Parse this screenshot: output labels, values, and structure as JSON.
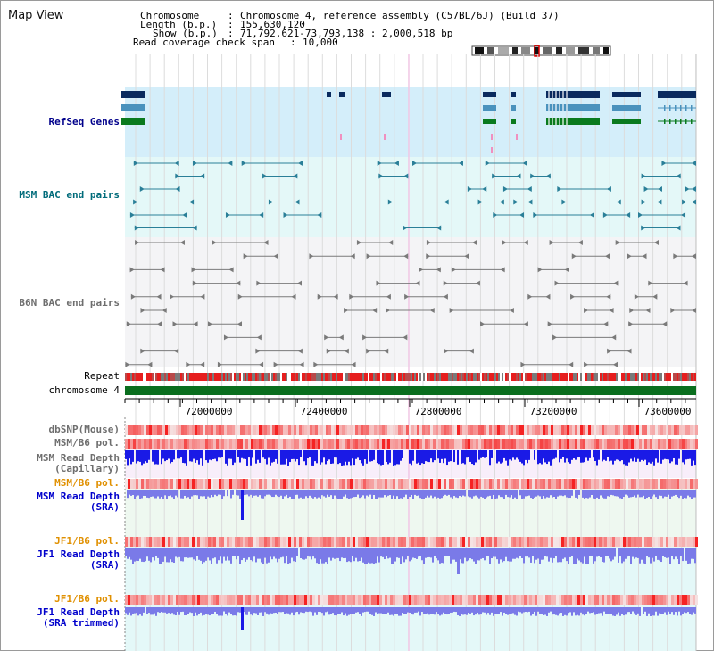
{
  "view": {
    "title": "Map View"
  },
  "info": {
    "chromosome_label": "Chromosome",
    "chromosome_value": "Chromosome 4, reference assembly (C57BL/6J) (Build 37)",
    "length_label": "Length (b.p.)",
    "length_value": "155,630,120",
    "show_label": "Show (b.p.)",
    "show_value": "71,792,621-73,793,138 : 2,000,518 bp",
    "coverage_label": "Read coverage check span",
    "coverage_value": "10,000",
    "sep": ":"
  },
  "tracks": {
    "refseq": "RefSeq Genes",
    "msm_bac": "MSM BAC end pairs",
    "b6n_bac": "B6N BAC end pairs",
    "repeat": "Repeat",
    "chromosome": "chromosome 4",
    "dbsnp": "dbSNP(Mouse)",
    "msm_b6_pol_1": "MSM/B6 pol.",
    "msm_read_depth_cap_1": "MSM Read Depth",
    "msm_read_depth_cap_2": "(Capillary)",
    "msm_b6_pol_2": "MSM/B6 pol.",
    "msm_read_depth_sra_1": "MSM Read Depth",
    "msm_read_depth_sra_2": "(SRA)",
    "jf1_b6_pol_1": "JF1/B6 pol.",
    "jf1_read_depth_sra_1": "JF1 Read Depth",
    "jf1_read_depth_sra_2": "(SRA)",
    "jf1_b6_pol_2": "JF1/B6 pol.",
    "jf1_read_depth_trim_1": "JF1 Read Depth",
    "jf1_read_depth_trim_2": "(SRA trimmed)"
  },
  "axis": {
    "ticks": [
      "72000000",
      "72400000",
      "72800000",
      "73200000",
      "73600000"
    ]
  },
  "colors": {
    "refseq_bg": "#d4eefa",
    "bac_bg": "#e4f8f8",
    "b6n_bg": "#f4f4f6",
    "chrom": "#0a6e1e",
    "gene_navy": "#0a2a5e",
    "gene_steel": "#4a92bd",
    "gene_green": "#0a7a1e",
    "msm_bac": "#2a7f98",
    "b6n_bac": "#7a7a7a",
    "depth_blue": "#1a1ae6",
    "depth_violet": "#7a7ae8"
  }
}
